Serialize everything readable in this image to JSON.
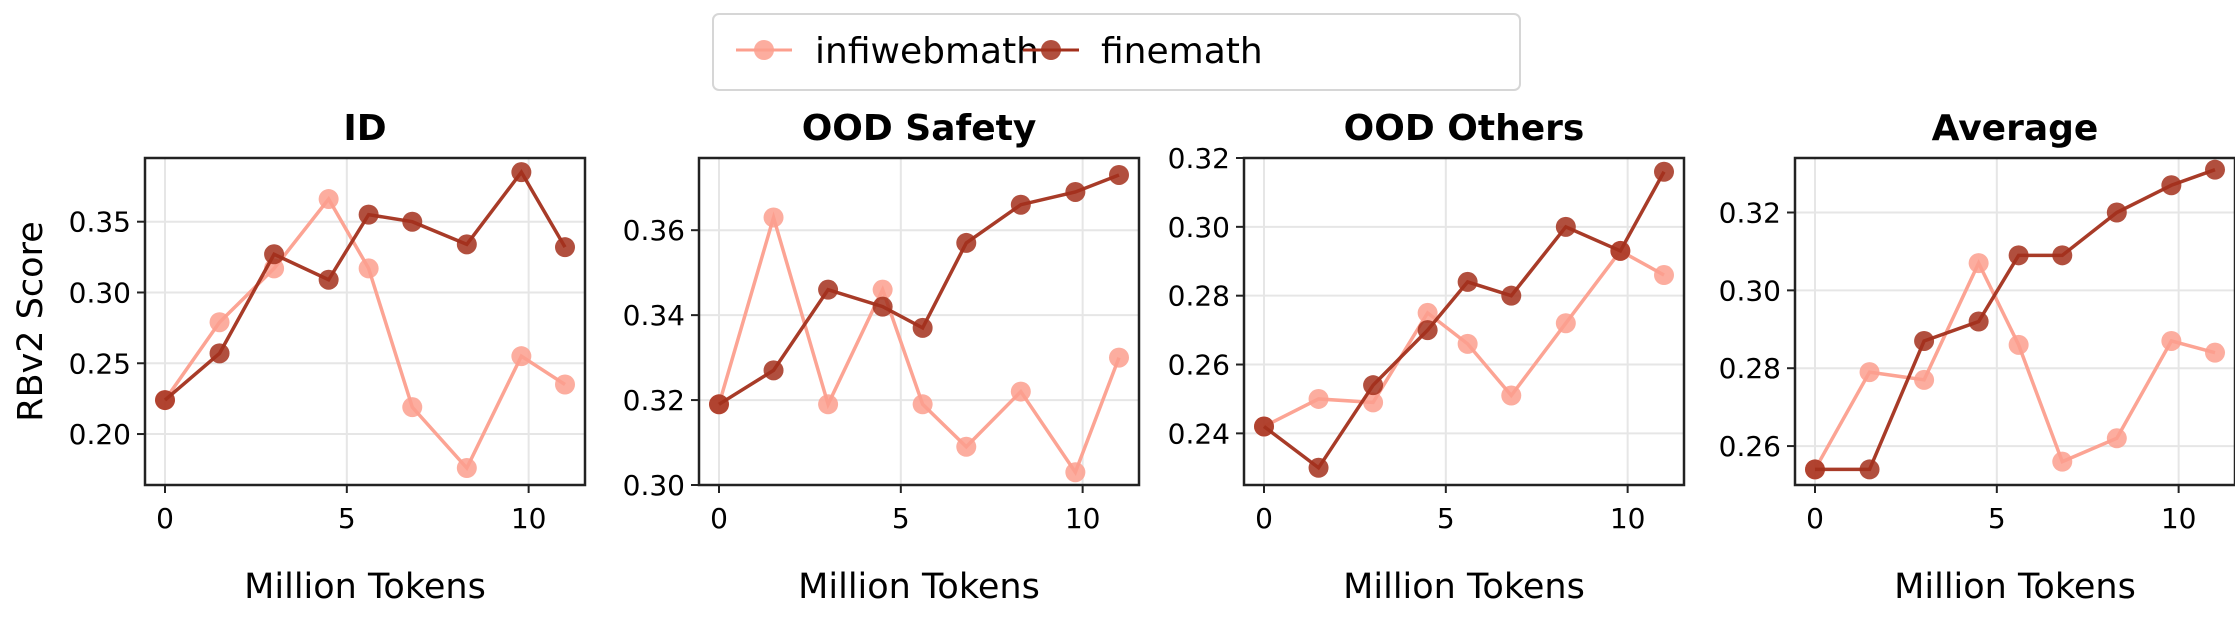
{
  "legend": {
    "placement": "top-center",
    "entries": [
      "infiwebmath",
      "finemath"
    ]
  },
  "colors": {
    "infiwebmath": "#fc9f8e",
    "finemath": "#a3301c",
    "grid": "#e6e6e6"
  },
  "chart_data": [
    {
      "type": "line",
      "title": "ID",
      "xlabel": "Million Tokens",
      "ylabel": "RBv2 Score",
      "x": [
        0,
        1.5,
        3,
        4.5,
        5.6,
        6.8,
        8.3,
        9.8,
        11
      ],
      "xlim": [
        -0.55,
        11.55
      ],
      "ylim": [
        0.164,
        0.395
      ],
      "xticks": [
        0,
        5,
        10
      ],
      "yticks": [
        0.2,
        0.25,
        0.3,
        0.35
      ],
      "ytick_labels": [
        "0.20",
        "0.25",
        "0.30",
        "0.35"
      ],
      "grid": true,
      "series": [
        {
          "name": "infiwebmath",
          "values": [
            0.224,
            0.279,
            0.317,
            0.366,
            0.317,
            0.219,
            0.176,
            0.255,
            0.235
          ]
        },
        {
          "name": "finemath",
          "values": [
            0.224,
            0.257,
            0.327,
            0.309,
            0.355,
            0.35,
            0.334,
            0.385,
            0.332
          ]
        }
      ]
    },
    {
      "type": "line",
      "title": "OOD Safety",
      "xlabel": "Million Tokens",
      "ylabel": "",
      "x": [
        0,
        1.5,
        3,
        4.5,
        5.6,
        6.8,
        8.3,
        9.8,
        11
      ],
      "xlim": [
        -0.55,
        11.55
      ],
      "ylim": [
        0.3,
        0.377
      ],
      "xticks": [
        0,
        5,
        10
      ],
      "yticks": [
        0.3,
        0.32,
        0.34,
        0.36
      ],
      "ytick_labels": [
        "0.30",
        "0.32",
        "0.34",
        "0.36"
      ],
      "grid": true,
      "series": [
        {
          "name": "infiwebmath",
          "values": [
            0.319,
            0.363,
            0.319,
            0.346,
            0.319,
            0.309,
            0.322,
            0.303,
            0.33
          ]
        },
        {
          "name": "finemath",
          "values": [
            0.319,
            0.327,
            0.346,
            0.342,
            0.337,
            0.357,
            0.366,
            0.369,
            0.373
          ]
        }
      ]
    },
    {
      "type": "line",
      "title": "OOD Others",
      "xlabel": "Million Tokens",
      "ylabel": "",
      "x": [
        0,
        1.5,
        3,
        4.5,
        5.6,
        6.8,
        8.3,
        9.8,
        11
      ],
      "xlim": [
        -0.55,
        11.55
      ],
      "ylim": [
        0.225,
        0.32
      ],
      "xticks": [
        0,
        5,
        10
      ],
      "yticks": [
        0.24,
        0.26,
        0.28,
        0.3,
        0.32
      ],
      "ytick_labels": [
        "0.24",
        "0.26",
        "0.28",
        "0.30",
        "0.32"
      ],
      "grid": true,
      "series": [
        {
          "name": "infiwebmath",
          "values": [
            0.242,
            0.25,
            0.249,
            0.275,
            0.266,
            0.251,
            0.272,
            0.293,
            0.286
          ]
        },
        {
          "name": "finemath",
          "values": [
            0.242,
            0.23,
            0.254,
            0.27,
            0.284,
            0.28,
            0.3,
            0.293,
            0.316
          ]
        }
      ]
    },
    {
      "type": "line",
      "title": "Average",
      "xlabel": "Million Tokens",
      "ylabel": "",
      "x": [
        0,
        1.5,
        3,
        4.5,
        5.6,
        6.8,
        8.3,
        9.8,
        11
      ],
      "xlim": [
        -0.55,
        11.55
      ],
      "ylim": [
        0.25,
        0.334
      ],
      "xticks": [
        0,
        5,
        10
      ],
      "yticks": [
        0.26,
        0.28,
        0.3,
        0.32
      ],
      "ytick_labels": [
        "0.26",
        "0.28",
        "0.30",
        "0.32"
      ],
      "grid": true,
      "series": [
        {
          "name": "infiwebmath",
          "values": [
            0.254,
            0.279,
            0.277,
            0.307,
            0.286,
            0.256,
            0.262,
            0.287,
            0.284
          ]
        },
        {
          "name": "finemath",
          "values": [
            0.254,
            0.254,
            0.287,
            0.292,
            0.309,
            0.309,
            0.32,
            0.327,
            0.331
          ]
        }
      ]
    }
  ]
}
